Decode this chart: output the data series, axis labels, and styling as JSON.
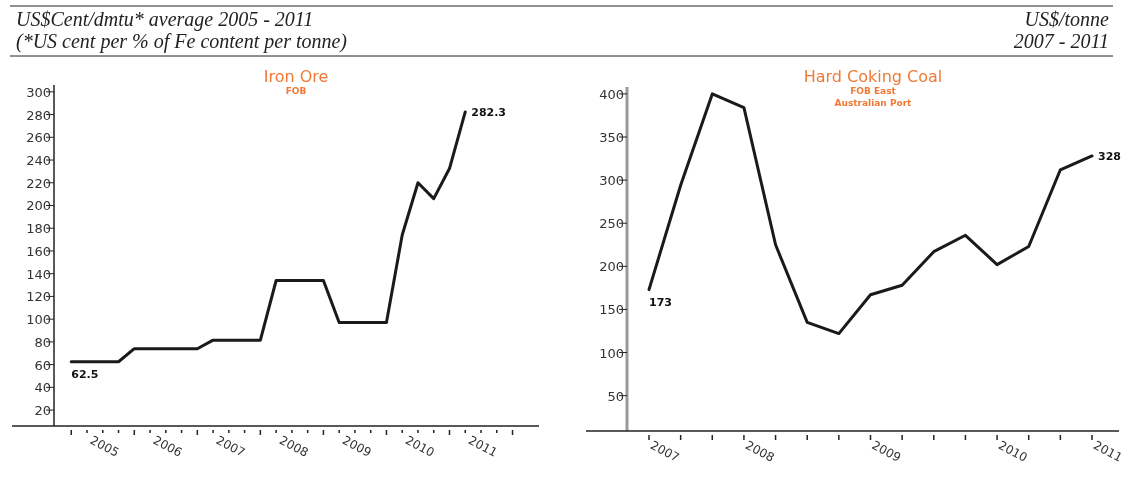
{
  "chart_data": [
    {
      "type": "line",
      "title": "Iron Ore",
      "subtitle": "FOB",
      "ylabel": "US$Cent/dmtu* average 2005 - 2011",
      "annotations": [
        "(*US cent per % of Fe content per tonne)"
      ],
      "x": [
        2005,
        2005.75,
        2006,
        2007,
        2007.25,
        2008,
        2008.25,
        2009,
        2009.25,
        2010,
        2010.25,
        2010.5,
        2010.75,
        2011,
        2011.25
      ],
      "values": [
        62.5,
        62.5,
        74,
        74,
        81.5,
        81.5,
        134,
        134,
        97,
        97,
        174,
        220,
        206,
        232.5,
        282.3
      ],
      "value_labels": [
        "62.5",
        null,
        null,
        null,
        null,
        null,
        null,
        null,
        null,
        null,
        null,
        null,
        null,
        null,
        "282.3"
      ],
      "color": "#1a1a1a",
      "xlim": [
        2004.06,
        2012.42
      ],
      "ylim": [
        6,
        306
      ],
      "xticks": [
        {
          "value": 2005,
          "label": null
        },
        {
          "value": 2005.25,
          "label": null
        },
        {
          "value": 2005.5,
          "label": "2005"
        },
        {
          "value": 2005.75,
          "label": null
        },
        {
          "value": 2006,
          "label": null
        },
        {
          "value": 2006.25,
          "label": null
        },
        {
          "value": 2006.5,
          "label": "2006"
        },
        {
          "value": 2006.75,
          "label": null
        },
        {
          "value": 2007,
          "label": null
        },
        {
          "value": 2007.25,
          "label": null
        },
        {
          "value": 2007.5,
          "label": "2007"
        },
        {
          "value": 2007.75,
          "label": null
        },
        {
          "value": 2008,
          "label": null
        },
        {
          "value": 2008.25,
          "label": null
        },
        {
          "value": 2008.5,
          "label": "2008"
        },
        {
          "value": 2008.75,
          "label": null
        },
        {
          "value": 2009,
          "label": null
        },
        {
          "value": 2009.25,
          "label": null
        },
        {
          "value": 2009.5,
          "label": "2009"
        },
        {
          "value": 2009.75,
          "label": null
        },
        {
          "value": 2010,
          "label": null
        },
        {
          "value": 2010.25,
          "label": null
        },
        {
          "value": 2010.5,
          "label": "2010"
        },
        {
          "value": 2010.75,
          "label": null
        },
        {
          "value": 2011,
          "label": null
        },
        {
          "value": 2011.25,
          "label": null
        },
        {
          "value": 2011.5,
          "label": "2011"
        },
        {
          "value": 2011.75,
          "label": null
        },
        {
          "value": 2012,
          "label": null
        }
      ],
      "yticks": [
        20,
        40,
        60,
        80,
        100,
        120,
        140,
        160,
        180,
        200,
        220,
        240,
        260,
        280,
        300
      ]
    },
    {
      "type": "line",
      "title": "Hard Coking Coal",
      "subtitle": "FOB East Australian Port",
      "ylabel": "US$/tonne",
      "annotations": [
        "2007 - 2011"
      ],
      "categories": [
        "2007",
        null,
        null,
        "2008",
        null,
        null,
        null,
        "2009",
        null,
        null,
        null,
        "2010",
        null,
        null,
        "2011"
      ],
      "values": [
        173,
        294,
        400,
        384,
        225,
        135,
        122,
        167,
        178,
        217,
        236,
        202,
        223,
        312,
        328
      ],
      "value_labels": [
        "173",
        null,
        null,
        null,
        null,
        null,
        null,
        null,
        null,
        null,
        null,
        null,
        null,
        null,
        "328"
      ],
      "color": "#1a1a1a",
      "ylim": [
        9,
        408
      ],
      "yticks": [
        50,
        100,
        150,
        200,
        250,
        300,
        350,
        400
      ]
    }
  ]
}
